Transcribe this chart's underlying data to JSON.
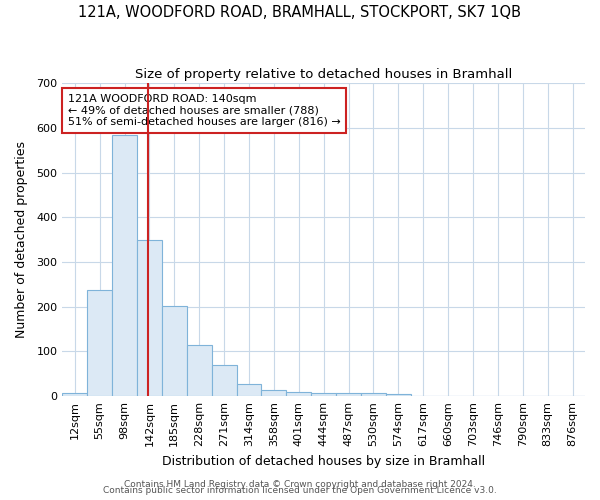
{
  "title1": "121A, WOODFORD ROAD, BRAMHALL, STOCKPORT, SK7 1QB",
  "title2": "Size of property relative to detached houses in Bramhall",
  "xlabel": "Distribution of detached houses by size in Bramhall",
  "ylabel": "Number of detached properties",
  "bin_labels": [
    "12sqm",
    "55sqm",
    "98sqm",
    "142sqm",
    "185sqm",
    "228sqm",
    "271sqm",
    "314sqm",
    "358sqm",
    "401sqm",
    "444sqm",
    "487sqm",
    "530sqm",
    "574sqm",
    "617sqm",
    "660sqm",
    "703sqm",
    "746sqm",
    "790sqm",
    "833sqm",
    "876sqm"
  ],
  "bar_values": [
    7,
    238,
    583,
    350,
    202,
    115,
    70,
    27,
    14,
    9,
    7,
    6,
    7,
    4,
    1,
    1,
    0,
    0,
    0,
    0,
    0
  ],
  "bin_edges_sqm": [
    12,
    55,
    98,
    142,
    185,
    228,
    271,
    314,
    358,
    401,
    444,
    487,
    530,
    574,
    617,
    660,
    703,
    746,
    790,
    833,
    876
  ],
  "bar_color": "#dce9f5",
  "bar_edge_color": "#7fb3d9",
  "property_size": 140,
  "vline_color": "#cc2222",
  "annotation_line1": "121A WOODFORD ROAD: 140sqm",
  "annotation_line2": "← 49% of detached houses are smaller (788)",
  "annotation_line3": "51% of semi-detached houses are larger (816) →",
  "annotation_box_color": "white",
  "annotation_box_edge": "#cc2222",
  "ylim": [
    0,
    700
  ],
  "yticks": [
    0,
    100,
    200,
    300,
    400,
    500,
    600,
    700
  ],
  "footer1": "Contains HM Land Registry data © Crown copyright and database right 2024.",
  "footer2": "Contains public sector information licensed under the Open Government Licence v3.0.",
  "background_color": "#ffffff",
  "plot_bg_color": "#ffffff",
  "grid_color": "#c8d8e8",
  "title1_fontsize": 10.5,
  "title2_fontsize": 9.5,
  "axis_label_fontsize": 9,
  "tick_fontsize": 8,
  "annotation_fontsize": 8,
  "footer_fontsize": 6.5
}
